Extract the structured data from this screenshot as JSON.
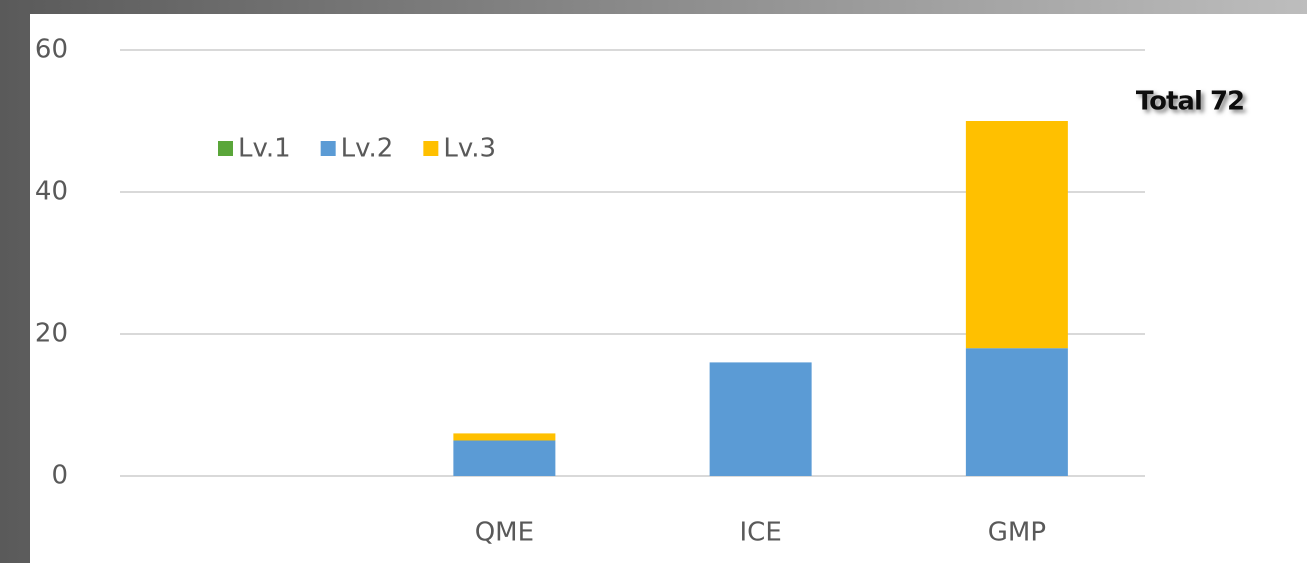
{
  "chart_data": {
    "type": "stacked-bar",
    "annotation": "Total 72",
    "categories": [
      null,
      "QME",
      "ICE",
      "GMP"
    ],
    "series": [
      {
        "name": "Lv.1",
        "color": "#5aa63a",
        "values": [
          0,
          0,
          0,
          0
        ]
      },
      {
        "name": "Lv.2",
        "color": "#5b9bd5",
        "values": [
          0,
          5,
          16,
          18
        ]
      },
      {
        "name": "Lv.3",
        "color": "#ffc000",
        "values": [
          0,
          1,
          0,
          32
        ]
      }
    ],
    "ylim": [
      0,
      60
    ],
    "yticks": [
      0,
      20,
      40,
      60
    ],
    "grid": true,
    "legend": "top-left"
  }
}
